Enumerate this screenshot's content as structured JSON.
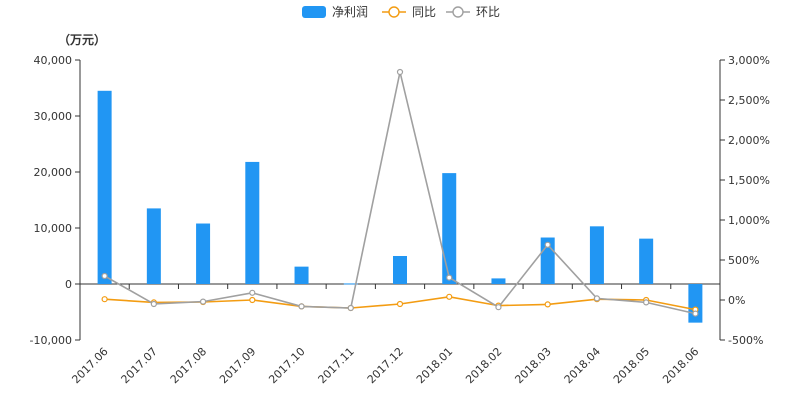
{
  "colors": {
    "bar": "#2196f3",
    "yoy": "#f39c12",
    "mom": "#a0a0a0",
    "axis": "#333333"
  },
  "legend": {
    "items": [
      {
        "label": "净利润",
        "icon": "bar-swatch-icon"
      },
      {
        "label": "同比",
        "icon": "line-circle-marker-icon"
      },
      {
        "label": "环比",
        "icon": "line-circle-marker-icon"
      }
    ]
  },
  "chart_data": {
    "type": "bar",
    "unit_label": "（万元）",
    "categories": [
      "2017.06",
      "2017.07",
      "2017.08",
      "2017.09",
      "2017.10",
      "2017.11",
      "2017.12",
      "2018.01",
      "2018.02",
      "2018.03",
      "2018.04",
      "2018.05",
      "2018.06"
    ],
    "series": [
      {
        "name": "净利润",
        "type": "bar",
        "axis": "left",
        "values": [
          34500,
          13500,
          10800,
          21800,
          3100,
          100,
          5000,
          19800,
          1000,
          8300,
          10300,
          8100,
          -6900
        ]
      },
      {
        "name": "同比",
        "type": "line",
        "axis": "right",
        "values": [
          10,
          -30,
          -25,
          0,
          -80,
          -100,
          -50,
          40,
          -70,
          -55,
          10,
          0,
          -120
        ]
      },
      {
        "name": "环比",
        "type": "line",
        "axis": "right",
        "values": [
          300,
          -50,
          -20,
          90,
          -80,
          -100,
          2850,
          280,
          -90,
          690,
          20,
          -30,
          -170
        ]
      }
    ],
    "y_left": {
      "min": -10000,
      "max": 40000,
      "ticks": [
        "-10,000",
        "0",
        "10,000",
        "20,000",
        "30,000",
        "40,000"
      ],
      "values": [
        -10000,
        0,
        10000,
        20000,
        30000,
        40000
      ]
    },
    "y_right": {
      "min": -500,
      "max": 3000,
      "ticks": [
        "-500%",
        "0%",
        "500%",
        "1,000%",
        "1,500%",
        "2,000%",
        "2,500%",
        "3,000%"
      ],
      "values": [
        -500,
        0,
        500,
        1000,
        1500,
        2000,
        2500,
        3000
      ]
    },
    "grid": false,
    "legend_position": "top-center"
  }
}
